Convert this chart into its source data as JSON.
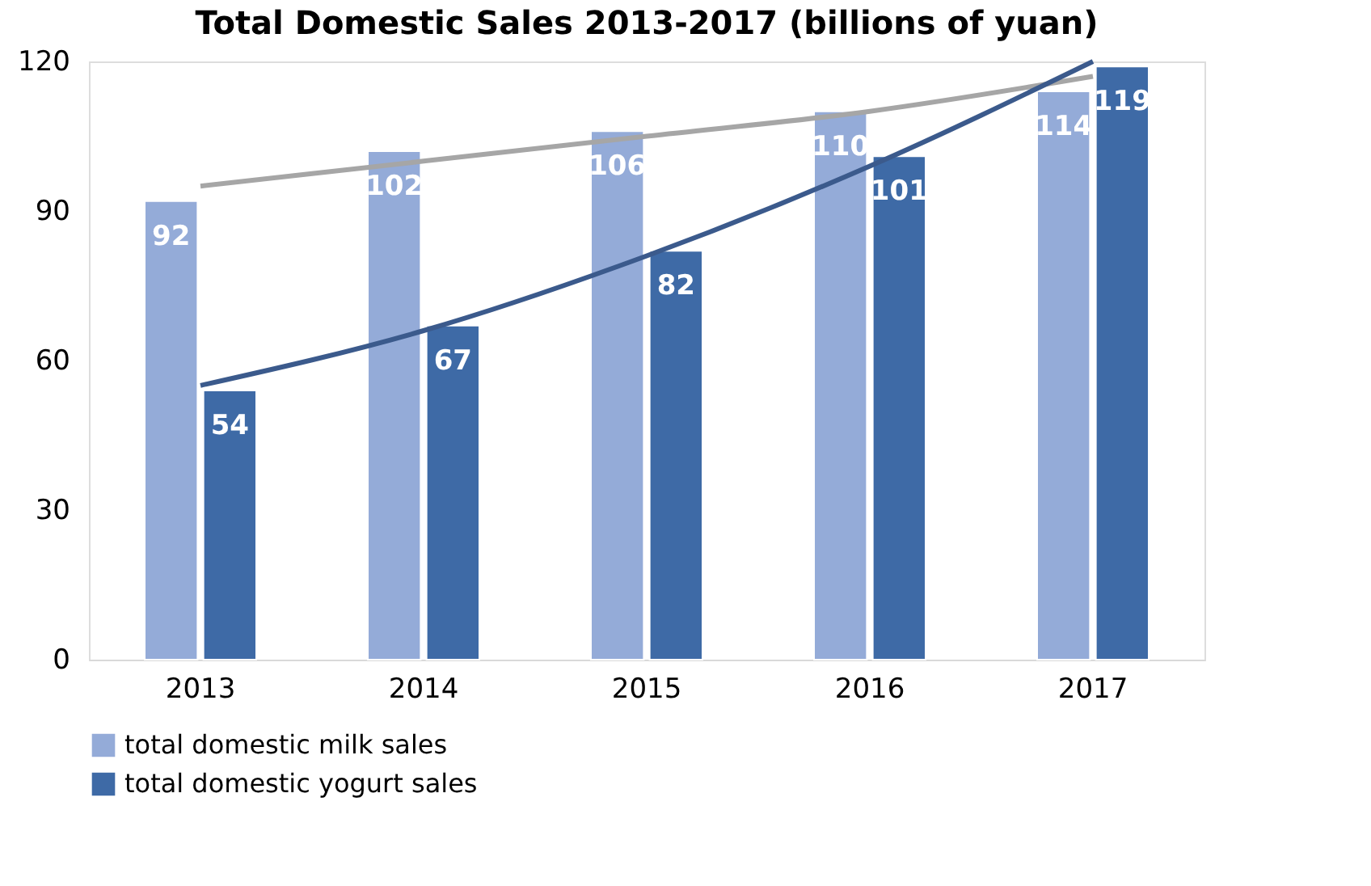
{
  "chart_data": {
    "type": "bar",
    "title": "Total Domestic Sales 2013-2017  (billions of yuan)",
    "categories": [
      "2013",
      "2014",
      "2015",
      "2016",
      "2017"
    ],
    "series": [
      {
        "name": "total domestic milk sales",
        "color": "#94abd8",
        "values": [
          92,
          102,
          106,
          110,
          114
        ],
        "value_labels": [
          "92",
          "102",
          "106",
          "110",
          "114"
        ]
      },
      {
        "name": "total domestic yogurt sales",
        "color": "#3e6aa6",
        "values": [
          54,
          67,
          82,
          101,
          119
        ],
        "value_labels": [
          "54",
          "67",
          "82",
          "101",
          "119"
        ]
      },
      {
        "type": "line",
        "color": "#a6a6a6",
        "values": [
          95,
          100,
          105,
          110,
          117
        ]
      },
      {
        "type": "line",
        "color": "#3b5a8c",
        "values": [
          55,
          66,
          81,
          99,
          120
        ]
      }
    ],
    "ylim": [
      0,
      120
    ],
    "yticks": [
      0,
      30,
      60,
      90,
      120
    ],
    "grid": false,
    "legend": "bottom"
  }
}
